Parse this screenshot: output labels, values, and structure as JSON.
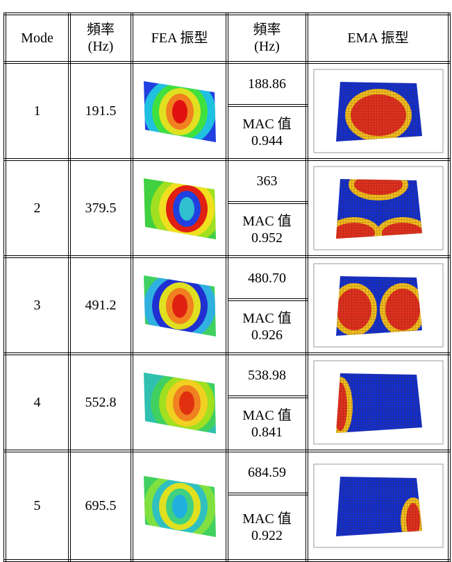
{
  "table": {
    "header": [
      "Mode",
      [
        "頻率",
        "(Hz)"
      ],
      "FEA 振型",
      [
        "頻率",
        "(Hz)"
      ],
      "EMA 振型"
    ],
    "rows": [
      {
        "mode": "1",
        "fea_freq": "191.5",
        "ema_freq": "188.86",
        "mac_label": "MAC 值",
        "mac": "0.944"
      },
      {
        "mode": "2",
        "fea_freq": "379.5",
        "ema_freq": "363",
        "mac_label": "MAC 值",
        "mac": "0.952"
      },
      {
        "mode": "3",
        "fea_freq": "491.2",
        "ema_freq": "480.70",
        "mac_label": "MAC 值",
        "mac": "0.926"
      },
      {
        "mode": "4",
        "fea_freq": "552.8",
        "ema_freq": "538.98",
        "mac_label": "MAC 值",
        "mac": "0.841"
      },
      {
        "mode": "5",
        "fea_freq": "695.5",
        "ema_freq": "684.59",
        "mac_label": "MAC 值",
        "mac": "0.922"
      }
    ]
  }
}
